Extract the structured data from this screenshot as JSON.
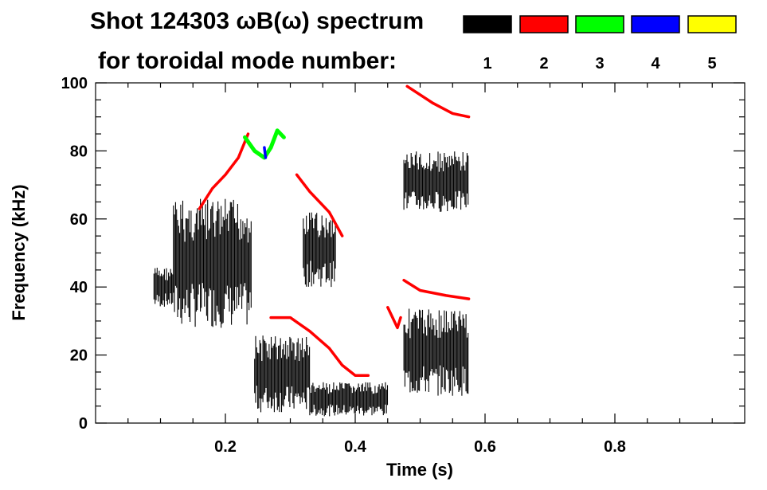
{
  "chart_data": {
    "type": "heatmap",
    "title": "Shot 124303 ωB(ω) spectrum",
    "subtitle": "for toroidal mode number:",
    "xlabel": "Time (s)",
    "ylabel": "Frequency (kHz)",
    "xlim": [
      0.0,
      1.0
    ],
    "ylim": [
      0,
      100
    ],
    "x_ticks": [
      "0.2",
      "0.4",
      "0.6",
      "0.8"
    ],
    "x_tick_values": [
      0.2,
      0.4,
      0.6,
      0.8
    ],
    "y_ticks": [
      "0",
      "20",
      "40",
      "60",
      "80",
      "100"
    ],
    "y_tick_values": [
      0,
      20,
      40,
      60,
      80,
      100
    ],
    "legend": {
      "placement": "top-right",
      "entries": [
        {
          "label": "1",
          "color": "#000000"
        },
        {
          "label": "2",
          "color": "#ff0000"
        },
        {
          "label": "3",
          "color": "#00ff00"
        },
        {
          "label": "4",
          "color": "#0000ff"
        },
        {
          "label": "5",
          "color": "#ffff00"
        }
      ]
    },
    "series": [
      {
        "mode": 1,
        "color": "#000000",
        "regions": [
          {
            "t": [
              0.09,
              0.12
            ],
            "f": [
              34,
              46
            ]
          },
          {
            "t": [
              0.12,
              0.24
            ],
            "f": [
              28,
              66
            ]
          },
          {
            "t": [
              0.245,
              0.33
            ],
            "f": [
              3,
              26
            ]
          },
          {
            "t": [
              0.33,
              0.45
            ],
            "f": [
              2,
              12
            ]
          },
          {
            "t": [
              0.32,
              0.37
            ],
            "f": [
              40,
              62
            ]
          },
          {
            "t": [
              0.475,
              0.575
            ],
            "f": [
              8,
              34
            ]
          },
          {
            "t": [
              0.475,
              0.575
            ],
            "f": [
              62,
              80
            ]
          }
        ]
      },
      {
        "mode": 2,
        "color": "#ff0000",
        "tracks": [
          [
            [
              0.16,
              63
            ],
            [
              0.18,
              69
            ],
            [
              0.2,
              73
            ],
            [
              0.22,
              78
            ],
            [
              0.235,
              85
            ]
          ],
          [
            [
              0.31,
              73
            ],
            [
              0.33,
              68
            ],
            [
              0.36,
              62
            ],
            [
              0.38,
              55
            ]
          ],
          [
            [
              0.27,
              31
            ],
            [
              0.3,
              31
            ],
            [
              0.33,
              27
            ],
            [
              0.36,
              22
            ],
            [
              0.38,
              17
            ],
            [
              0.4,
              14
            ],
            [
              0.42,
              14
            ]
          ],
          [
            [
              0.475,
              42
            ],
            [
              0.5,
              39
            ],
            [
              0.54,
              37.5
            ],
            [
              0.575,
              36.5
            ]
          ],
          [
            [
              0.48,
              99
            ],
            [
              0.52,
              94
            ],
            [
              0.55,
              91
            ],
            [
              0.575,
              90
            ]
          ],
          [
            [
              0.45,
              34
            ],
            [
              0.465,
              28
            ],
            [
              0.47,
              31
            ]
          ]
        ]
      },
      {
        "mode": 3,
        "color": "#00ff00",
        "tracks": [
          [
            [
              0.23,
              84
            ],
            [
              0.245,
              80
            ],
            [
              0.26,
              78
            ],
            [
              0.27,
              81
            ],
            [
              0.28,
              86
            ],
            [
              0.29,
              84
            ]
          ]
        ]
      },
      {
        "mode": 4,
        "color": "#0000ff",
        "tracks": [
          [
            [
              0.26,
              81
            ],
            [
              0.262,
              78
            ]
          ]
        ]
      },
      {
        "mode": 5,
        "color": "#ffff00",
        "tracks": []
      }
    ]
  }
}
